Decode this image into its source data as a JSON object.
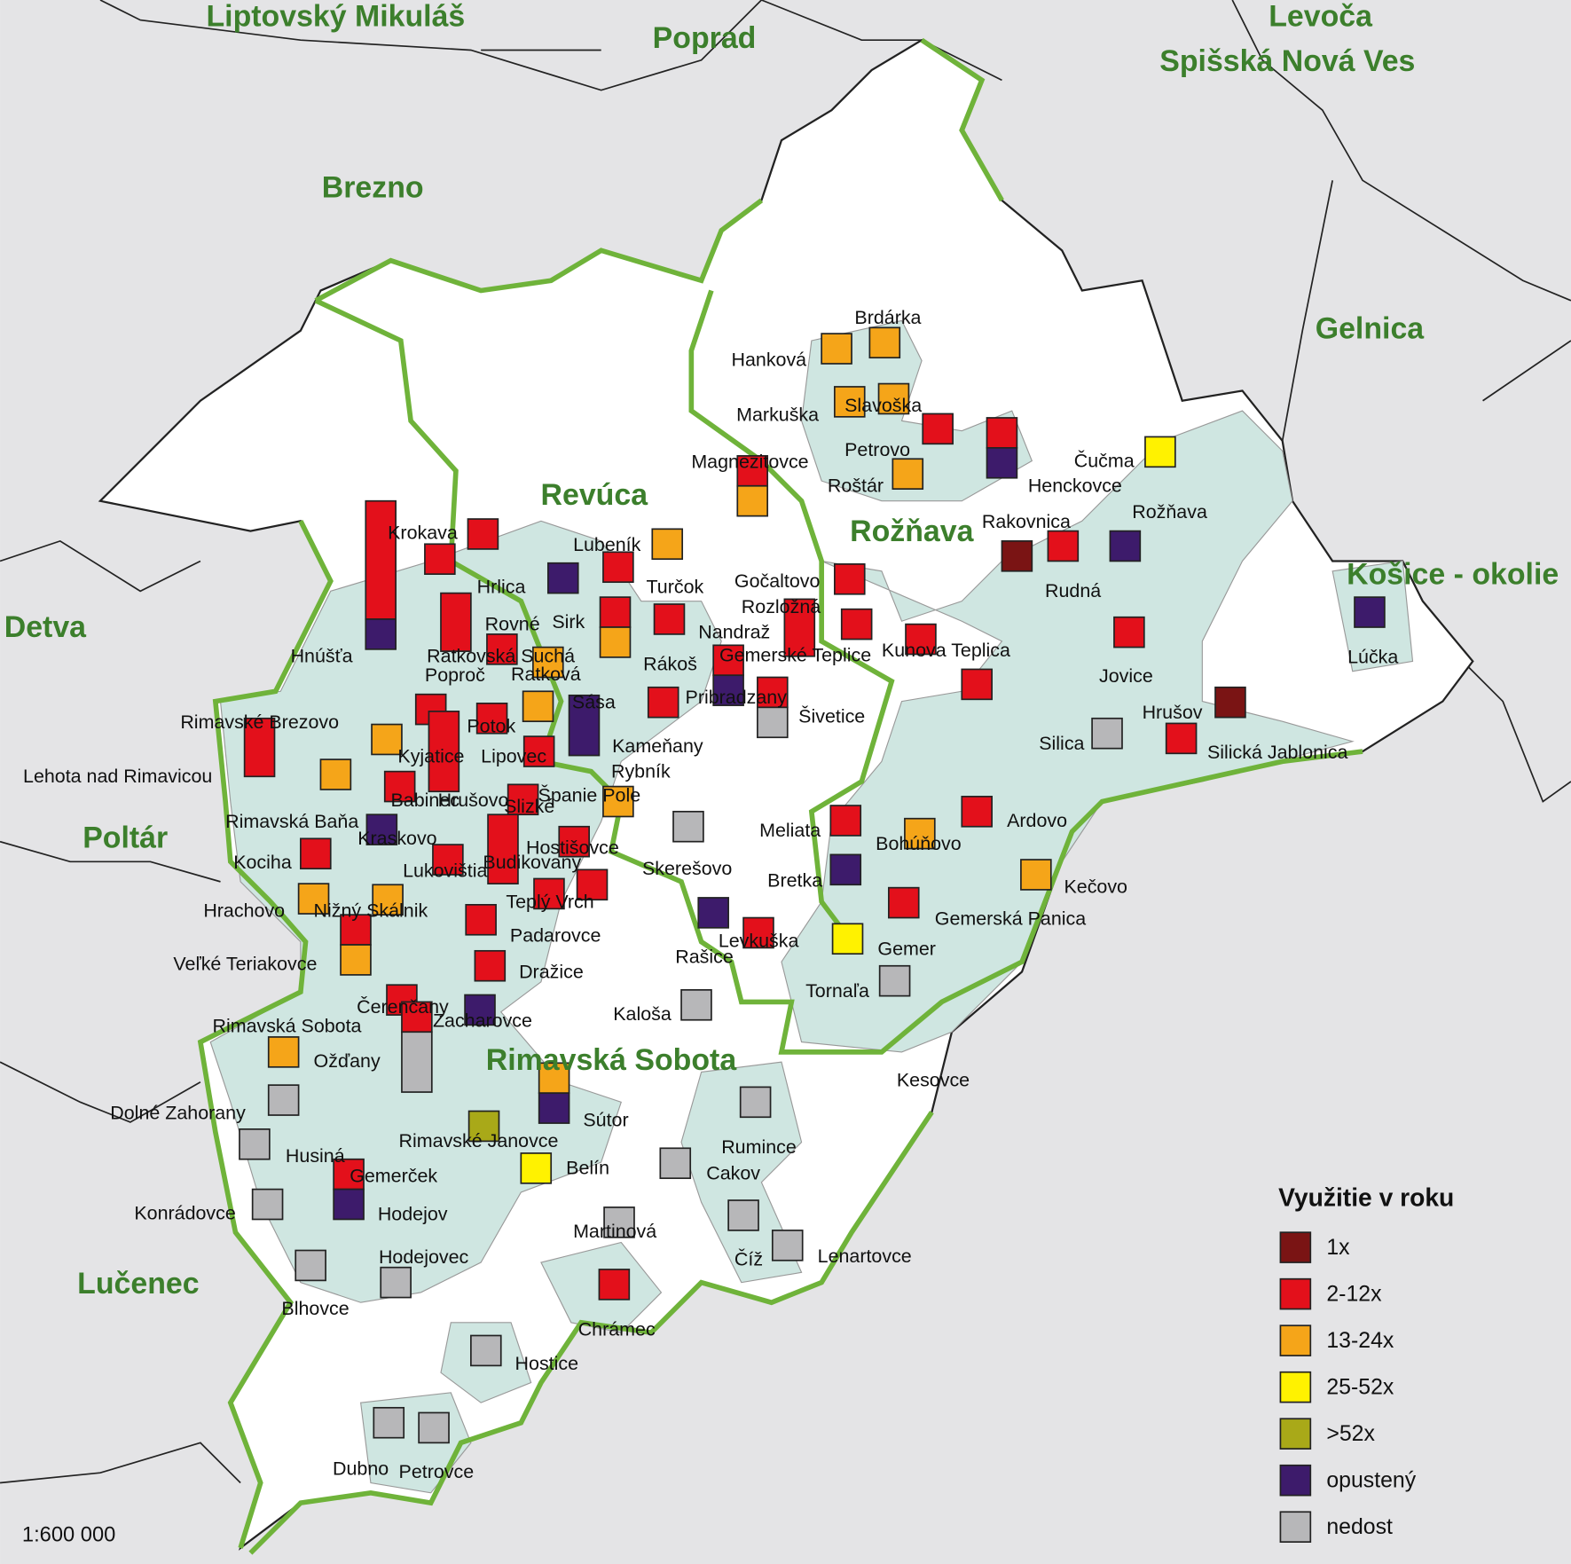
{
  "region_labels": [
    "Liptovský Mikuláš",
    "Poprad",
    "Levoča",
    "Spišská Nová Ves",
    "Brezno",
    "Gelnica",
    "Detva",
    "Košice - okolie",
    "Poltár",
    "Lučenec",
    "Revúca",
    "Rožňava",
    "Rimavská Sobota"
  ],
  "municipalities": [
    "Hanková",
    "Brdárka",
    "Markuška",
    "Slavoška",
    "Petrovo",
    "Magnezitovce",
    "Roštár",
    "Čučma",
    "Henckovce",
    "Rakovnica",
    "Rožňava",
    "Krokava",
    "Lubeník",
    "Hrlica",
    "Turčok",
    "Gočaltovo",
    "Rudná",
    "Rovné",
    "Sirk",
    "Rozložná",
    "Nandraž",
    "Hnúšťa",
    "Ratkovská Suchá",
    "Poproč",
    "Ratková",
    "Rákoš",
    "Gemerské Teplice",
    "Kunova Teplica",
    "Lúčka",
    "Jovice",
    "Pribradzany",
    "Sása",
    "Šivetice",
    "Hrušov",
    "Rimavské Brezovo",
    "Potok",
    "Kyjatice",
    "Lipovec",
    "Kameňany",
    "Silica",
    "Silická Jablonica",
    "Rybník",
    "Lehota nad Rimavicou",
    "Babinec",
    "Hrušovo",
    "Španie Pole",
    "Slizké",
    "Rimavská Baňa",
    "Meliata",
    "Ardovo",
    "Kraskovo",
    "Bohúňovo",
    "Hostišovce",
    "Kociha",
    "Lukovištia",
    "Budikovany",
    "Skerešovo",
    "Bretka",
    "Kečovo",
    "Teplý Vrch",
    "Hrachovo",
    "Nižný Skálnik",
    "Gemerská Panica",
    "Padarovce",
    "Levkuška",
    "Gemer",
    "Rašice",
    "Veľké Teriakovce",
    "Dražice",
    "Tornaľa",
    "Čerenčany",
    "Kaloša",
    "Zacharovce",
    "Rimavská Sobota",
    "Ožďany",
    "Kesovce",
    "Dolné Zahorany",
    "Sútor",
    "Rimavské Janovce",
    "Husiná",
    "Rumince",
    "Gemerček",
    "Belín",
    "Cakov",
    "Hodejov",
    "Konrádovce",
    "Martinová",
    "Hodejovec",
    "Číž",
    "Lenartovce",
    "Blhovce",
    "Chrámec",
    "Hostice",
    "Dubno",
    "Petrovce"
  ],
  "legend": {
    "title": "Využitie v roku",
    "items": [
      {
        "label": "1x",
        "color": "#7a1414"
      },
      {
        "label": "2-12x",
        "color": "#e3101b"
      },
      {
        "label": "13-24x",
        "color": "#f5a519"
      },
      {
        "label": "25-52x",
        "color": "#fff200"
      },
      {
        "label": ">52x",
        "color": "#a9a918"
      },
      {
        "label": "opustený",
        "color": "#3d1b6b"
      },
      {
        "label": "nedost",
        "color": "#b7b7b9"
      }
    ]
  },
  "scale": "1:600 000"
}
